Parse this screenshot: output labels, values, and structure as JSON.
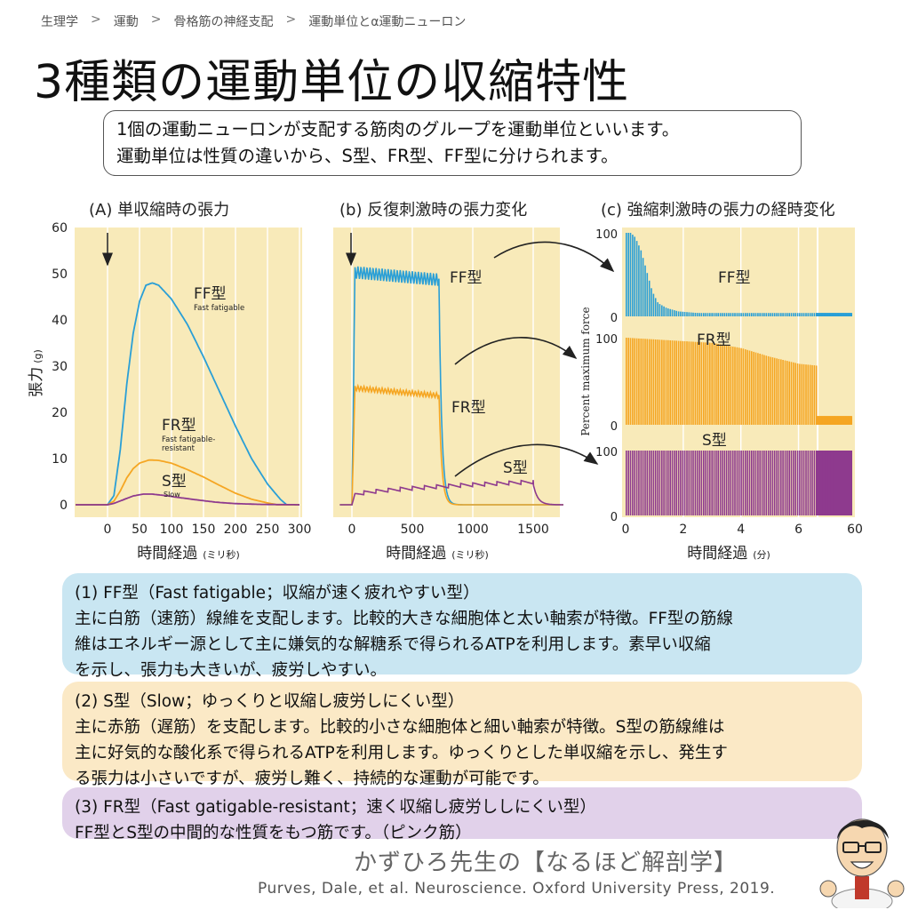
{
  "breadcrumb": [
    "生理学",
    "運動",
    "骨格筋の神経支配",
    "運動単位とα運動ニューロン"
  ],
  "title": "3種類の運動単位の収縮特性",
  "intro": {
    "line1": "1個の運動ニューロンが支配する筋肉のグループを運動単位といいます。",
    "line2": "運動単位は性質の違いから、S型、FR型、FF型に分けられます。"
  },
  "panels": {
    "a": {
      "title": "(A) 単収縮時の張力",
      "ylabel_main": "張力",
      "ylabel_unit": "(g)",
      "xlabel_main": "時間経過",
      "xlabel_unit": "(ミリ秒)",
      "labels": {
        "ff": "FF型",
        "ff_sub": "Fast fatigable",
        "fr": "FR型",
        "fr_sub1": "Fast fatigable-",
        "fr_sub2": "resistant",
        "s": "S型",
        "s_sub": "Slow"
      }
    },
    "b": {
      "title": "(b) 反復刺激時の張力変化",
      "xlabel_main": "時間経過",
      "xlabel_unit": "(ミリ秒)",
      "labels": {
        "ff": "FF型",
        "fr": "FR型",
        "s": "S型"
      }
    },
    "c": {
      "title": "(c) 強縮刺激時の張力の経時変化",
      "ylabel": "Percent maximum force",
      "xlabel_main": "時間経過",
      "xlabel_unit": "(分)",
      "labels": {
        "ff": "FF型",
        "fr": "FR型",
        "s": "S型"
      }
    }
  },
  "chart_data": [
    {
      "type": "line",
      "title": "(A) 単収縮時の張力",
      "xlabel": "時間経過 (ミリ秒)",
      "ylabel": "張力 (g)",
      "xlim": [
        -50,
        300
      ],
      "ylim": [
        0,
        60
      ],
      "x_ticks": [
        0,
        50,
        100,
        150,
        200,
        250,
        300
      ],
      "y_ticks": [
        0,
        10,
        20,
        30,
        40,
        50,
        60
      ],
      "stimulus_x": 0,
      "series": [
        {
          "name": "FF型",
          "color": "#2a9fd6",
          "points": [
            [
              -50,
              0
            ],
            [
              0,
              0
            ],
            [
              10,
              2
            ],
            [
              20,
              12
            ],
            [
              30,
              26
            ],
            [
              40,
              37
            ],
            [
              50,
              44
            ],
            [
              60,
              47.5
            ],
            [
              70,
              48
            ],
            [
              80,
              47.5
            ],
            [
              100,
              44.5
            ],
            [
              125,
              39
            ],
            [
              150,
              32
            ],
            [
              175,
              24.5
            ],
            [
              200,
              17
            ],
            [
              225,
              10
            ],
            [
              250,
              4.5
            ],
            [
              270,
              1.2
            ],
            [
              280,
              0
            ],
            [
              300,
              0
            ]
          ]
        },
        {
          "name": "FR型",
          "color": "#f5a623",
          "points": [
            [
              -50,
              0
            ],
            [
              0,
              0
            ],
            [
              10,
              0.8
            ],
            [
              20,
              3
            ],
            [
              30,
              5.8
            ],
            [
              40,
              7.8
            ],
            [
              50,
              9
            ],
            [
              65,
              9.7
            ],
            [
              80,
              9.6
            ],
            [
              100,
              9
            ],
            [
              125,
              7.6
            ],
            [
              150,
              6
            ],
            [
              175,
              4.2
            ],
            [
              200,
              2.5
            ],
            [
              225,
              1.2
            ],
            [
              250,
              0.4
            ],
            [
              265,
              0
            ],
            [
              300,
              0
            ]
          ]
        },
        {
          "name": "S型",
          "color": "#8e3a8e",
          "points": [
            [
              -50,
              0
            ],
            [
              0,
              0
            ],
            [
              10,
              0.3
            ],
            [
              25,
              1.1
            ],
            [
              40,
              1.9
            ],
            [
              55,
              2.3
            ],
            [
              70,
              2.3
            ],
            [
              90,
              2.0
            ],
            [
              110,
              1.6
            ],
            [
              140,
              1.05
            ],
            [
              170,
              0.55
            ],
            [
              200,
              0.25
            ],
            [
              240,
              0.08
            ],
            [
              300,
              0
            ]
          ]
        }
      ]
    },
    {
      "type": "line",
      "title": "(b) 反復刺激時の張力変化",
      "xlabel": "時間経過 (ミリ秒)",
      "xlim": [
        -100,
        1750
      ],
      "x_ticks": [
        0,
        500,
        1000,
        1500
      ],
      "stimulus_x": 0,
      "series": [
        {
          "name": "FF型",
          "color": "#2a9fd6",
          "start": 0,
          "end": 720,
          "plateau": 56,
          "ripple": 3,
          "ripple_period": 25
        },
        {
          "name": "FR型",
          "color": "#f5a623",
          "start": 0,
          "end": 720,
          "plateau": 28,
          "ripple": 1.2,
          "ripple_period": 25
        },
        {
          "name": "S型",
          "color": "#8e3a8e",
          "start": 0,
          "end": 1500,
          "start_level": 2.5,
          "plateau": 5.8,
          "ripple": 0.9,
          "ripple_period": 100
        }
      ]
    },
    {
      "type": "bar",
      "title": "(c) 強縮刺激時の張力の経時変化",
      "xlabel": "時間経過 (分)",
      "ylabel": "Percent maximum force",
      "xlim": [
        0,
        60
      ],
      "x_ticks": [
        0,
        2,
        4,
        6,
        60
      ],
      "ylim": [
        0,
        100
      ],
      "series": [
        {
          "name": "FF型",
          "color": "#2a9fd6",
          "decay": [
            [
              0,
              100
            ],
            [
              0.15,
              100
            ],
            [
              0.3,
              95
            ],
            [
              0.5,
              80
            ],
            [
              0.7,
              55
            ],
            [
              0.9,
              30
            ],
            [
              1.1,
              16
            ],
            [
              1.4,
              10
            ],
            [
              1.8,
              6
            ],
            [
              2.5,
              4
            ],
            [
              6.6,
              4
            ],
            [
              60,
              4
            ]
          ]
        },
        {
          "name": "FR型",
          "color": "#f5a623",
          "decay": [
            [
              0,
              100
            ],
            [
              1,
              98
            ],
            [
              2,
              96
            ],
            [
              3,
              94
            ],
            [
              4,
              88
            ],
            [
              5,
              78
            ],
            [
              6,
              70
            ],
            [
              6.6,
              68
            ],
            [
              6.65,
              10
            ],
            [
              60,
              10
            ]
          ]
        },
        {
          "name": "S型",
          "color": "#8e3a8e",
          "decay": [
            [
              0,
              100
            ],
            [
              6.6,
              100
            ],
            [
              60,
              100
            ]
          ]
        }
      ]
    }
  ],
  "boxes": {
    "ff": {
      "head": "(1) FF型（Fast fatigable；収縮が速く疲れやすい型）",
      "line1": "主に白筋（速筋）線維を支配します。比較的大きな細胞体と太い軸索が特徴。FF型の筋線",
      "line2": "維はエネルギー源として主に嫌気的な解糖系で得られるATPを利用します。素早い収縮",
      "line3": "を示し、張力も大きいが、疲労しやすい。"
    },
    "s": {
      "head": "(2) S型（Slow；ゆっくりと収縮し疲労しにくい型）",
      "line1": "主に赤筋（遅筋）を支配します。比較的小さな細胞体と細い軸索が特徴。S型の筋線維は",
      "line2": "主に好気的な酸化系で得られるATPを利用します。ゆっくりとした単収縮を示し、発生す",
      "line3": "る張力は小さいですが、疲労し難く、持続的な運動が可能です。"
    },
    "fr": {
      "head": "(3) FR型（Fast gatigable-resistant；速く収縮し疲労ししにくい型）",
      "line1": "FF型とS型の中間的な性質をもつ筋です。（ピンク筋）"
    }
  },
  "brand": "かずひろ先生の【なるほど解剖学】",
  "citation": "Purves, Dale, et al. Neuroscience. Oxford University Press, 2019.",
  "colors": {
    "panel_bg": "#f8eab9",
    "ff": "#2a9fd6",
    "fr": "#f5a623",
    "s": "#8e3a8e"
  }
}
